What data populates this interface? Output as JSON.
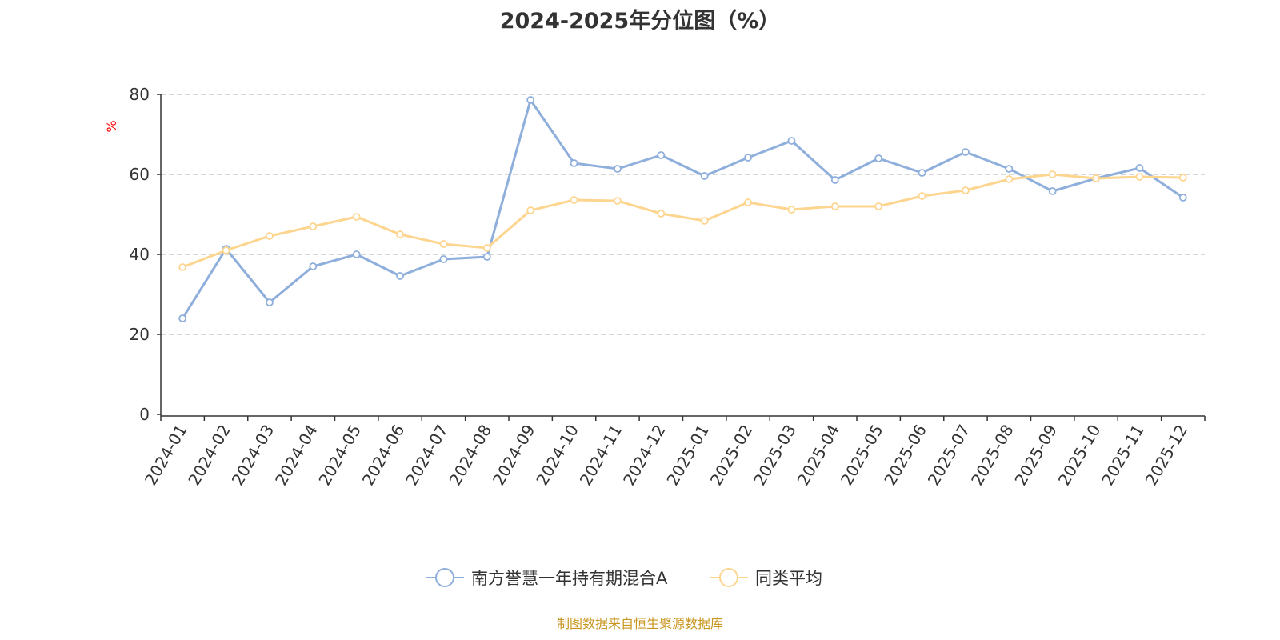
{
  "chart_data": {
    "type": "line",
    "title": "2024-2025年分位图（%）",
    "ylabel": "%",
    "xlabel": "",
    "ylim": [
      0,
      80
    ],
    "yticks": [
      0,
      20,
      40,
      60,
      80
    ],
    "grid": true,
    "legend_position": "bottom-center",
    "categories": [
      "2024-01",
      "2024-02",
      "2024-03",
      "2024-04",
      "2024-05",
      "2024-06",
      "2024-07",
      "2024-08",
      "2024-09",
      "2024-10",
      "2024-11",
      "2024-12",
      "2025-01",
      "2025-02",
      "2025-03",
      "2025-04",
      "2025-05",
      "2025-06",
      "2025-07",
      "2025-08",
      "2025-09",
      "2025-10",
      "2025-11",
      "2025-12"
    ],
    "series": [
      {
        "name": "南方誉慧一年持有期混合A",
        "color": "#8eaedc",
        "values": [
          24.0,
          41.4,
          28.0,
          37.0,
          40.0,
          34.6,
          38.8,
          39.4,
          78.6,
          62.8,
          61.4,
          64.8,
          59.6,
          64.2,
          68.4,
          58.6,
          64.0,
          60.4,
          65.6,
          61.4,
          55.8,
          59.0,
          61.6,
          54.2
        ]
      },
      {
        "name": "同类平均",
        "color": "#fdd58f",
        "values": [
          36.8,
          41.0,
          44.6,
          47.0,
          49.4,
          45.0,
          42.6,
          41.6,
          51.0,
          53.6,
          53.4,
          50.2,
          48.4,
          53.0,
          51.2,
          52.0,
          52.0,
          54.6,
          56.0,
          58.8,
          60.0,
          59.0,
          59.4,
          59.2
        ]
      }
    ]
  },
  "source": "制图数据来自恒生聚源数据库"
}
